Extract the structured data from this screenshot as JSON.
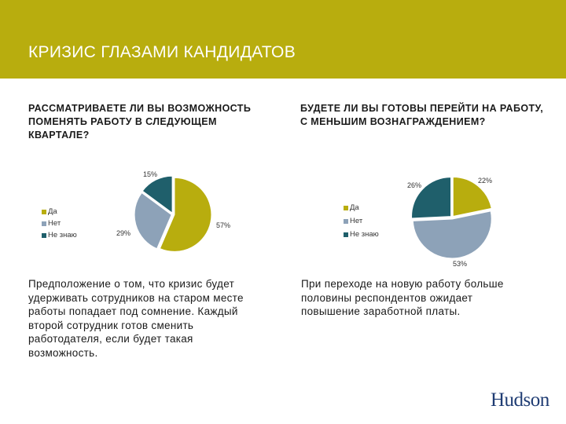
{
  "header": {
    "title": "КРИЗИС ГЛАЗАМИ КАНДИДАТОВ"
  },
  "colors": {
    "header_bg": "#b8ad0e",
    "yes": "#b8ad0e",
    "no": "#8da2b8",
    "dont_know": "#1f5f6b"
  },
  "chart_data": [
    {
      "type": "pie",
      "title": "РАССМАТРИВАЕТЕ ЛИ ВЫ ВОЗМОЖНОСТЬ ПОМЕНЯТЬ РАБОТУ В СЛЕДУЮЩЕМ КВАРТАЛЕ?",
      "categories": [
        "Да",
        "Нет",
        "Не знаю"
      ],
      "values": [
        57,
        29,
        15
      ],
      "labels": [
        "57%",
        "29%",
        "15%"
      ],
      "colors": [
        "#b8ad0e",
        "#8da2b8",
        "#1f5f6b"
      ],
      "legend": "left"
    },
    {
      "type": "pie",
      "title": "БУДЕТЕ ЛИ ВЫ ГОТОВЫ ПЕРЕЙТИ НА РАБОТУ, С МЕНЬШИМ ВОЗНАГРАЖДЕНИЕМ?",
      "categories": [
        "Да",
        "Нет",
        "Не знаю"
      ],
      "values": [
        22,
        53,
        26
      ],
      "labels": [
        "22%",
        "53%",
        "26%"
      ],
      "colors": [
        "#b8ad0e",
        "#8da2b8",
        "#1f5f6b"
      ],
      "legend": "left"
    }
  ],
  "text1": "Предположение о том, что кризис будет удерживать сотрудников на старом месте работы попадает под сомнение. Каждый второй сотрудник готов сменить работодателя, если будет такая возможность.",
  "text2": "При переходе на новую работу больше половины респондентов ожидает повышение заработной платы.",
  "logo": "Hudson"
}
